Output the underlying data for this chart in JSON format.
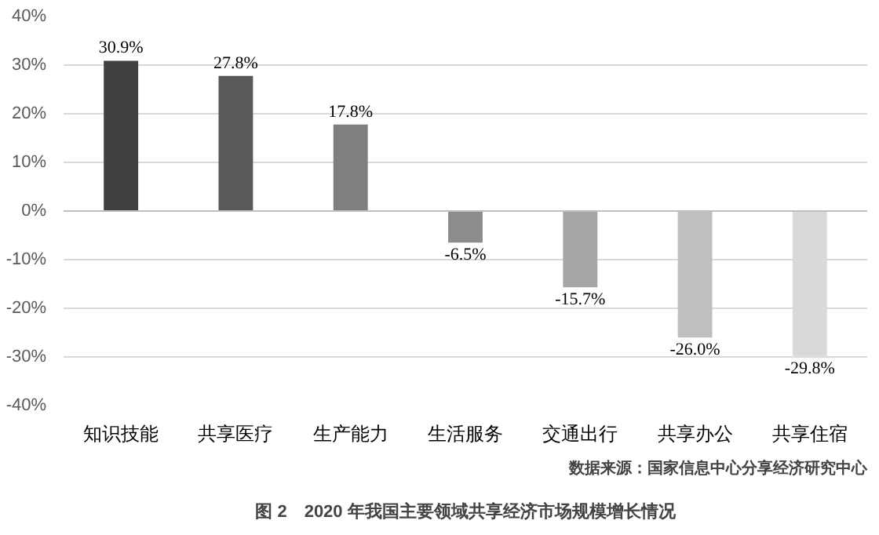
{
  "chart_data": {
    "type": "bar",
    "title": "图 2　2020 年我国主要领域共享经济市场规模增长情况",
    "categories": [
      "知识技能",
      "共享医疗",
      "生产能力",
      "生活服务",
      "交通出行",
      "共享办公",
      "共享住宿"
    ],
    "values": [
      30.9,
      27.8,
      17.8,
      -6.5,
      -15.7,
      -26.0,
      -29.8
    ],
    "value_labels": [
      "30.9%",
      "27.8%",
      "17.8%",
      "-6.5%",
      "-15.7%",
      "-26.0%",
      "-29.8%"
    ],
    "colors": [
      "#404040",
      "#595959",
      "#7f7f7f",
      "#8c8c8c",
      "#a6a6a6",
      "#bfbfbf",
      "#d9d9d9"
    ],
    "ylim": [
      -40,
      40
    ],
    "yticks": [
      {
        "value": -40,
        "label": "-40%"
      },
      {
        "value": -30,
        "label": "-30%"
      },
      {
        "value": -20,
        "label": "-20%"
      },
      {
        "value": -10,
        "label": "-10%"
      },
      {
        "value": 0,
        "label": "0%"
      },
      {
        "value": 10,
        "label": "10%"
      },
      {
        "value": 20,
        "label": "20%"
      },
      {
        "value": 30,
        "label": "30%"
      },
      {
        "value": 40,
        "label": "40%"
      }
    ],
    "grid": "y",
    "annotations": [
      "数据来源：国家信息中心分享经济研究中心"
    ]
  }
}
